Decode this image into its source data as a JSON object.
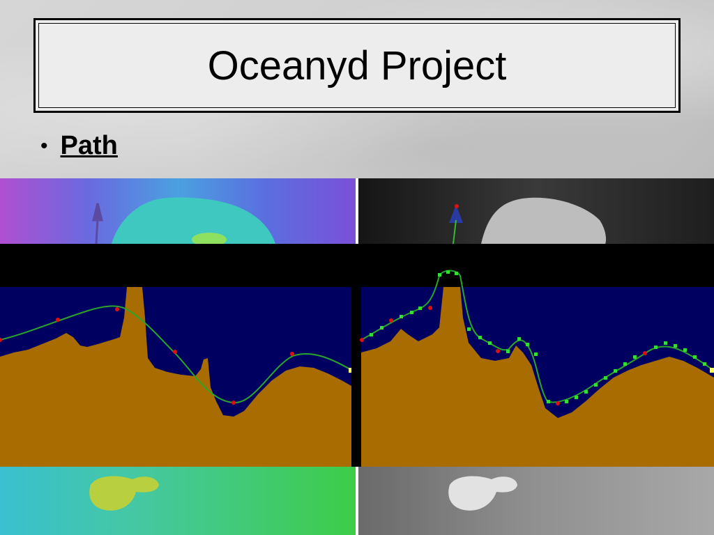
{
  "slide": {
    "title": "Oceanyd Project",
    "bullets": [
      {
        "label": "Path"
      }
    ]
  },
  "figure": {
    "description_colors": {
      "sea_floor": "#a86c00",
      "water": "#000060",
      "path_line": "#2aa52a",
      "waypoint_red": "#dd1111",
      "waypoint_green": "#33dd33",
      "target_marker": "#ffff66"
    },
    "panels": [
      "color-depth-map",
      "grayscale-depth-map"
    ]
  }
}
